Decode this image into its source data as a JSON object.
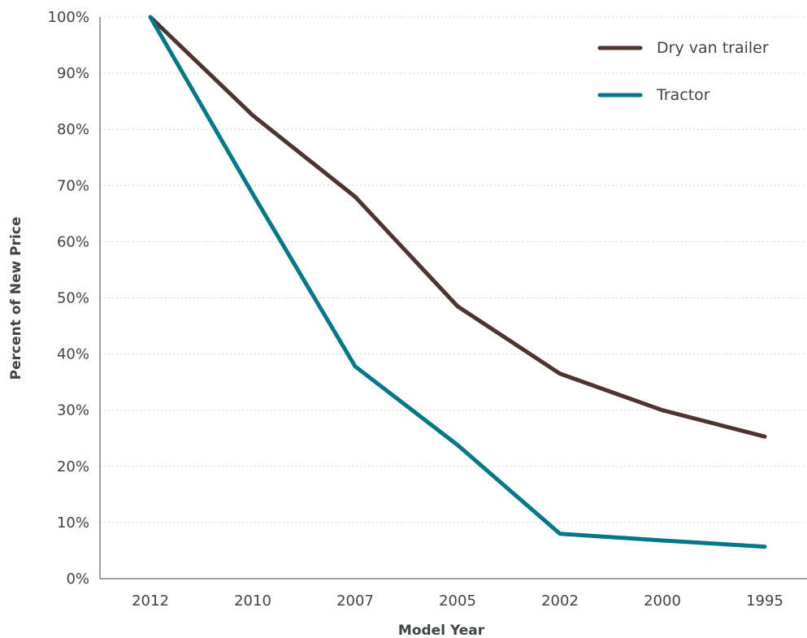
{
  "chart_data": {
    "type": "line",
    "title": "",
    "xlabel": "Model Year",
    "ylabel": "Percent of New Price",
    "categories": [
      "2012",
      "2010",
      "2007",
      "2005",
      "2002",
      "2000",
      "1995"
    ],
    "ylim": [
      0,
      100
    ],
    "yticks": [
      "0%",
      "10%",
      "20%",
      "30%",
      "40%",
      "50%",
      "60%",
      "70%",
      "80%",
      "90%",
      "100%"
    ],
    "grid": true,
    "legend_position": "top-right",
    "series": [
      {
        "name": "Dry van trailer",
        "color": "#4e342e",
        "values": [
          100,
          82.5,
          68,
          48.5,
          36.5,
          30,
          25.3
        ]
      },
      {
        "name": "Tractor",
        "color": "#00788a",
        "values": [
          100,
          68.5,
          37.8,
          23.8,
          8,
          6.8,
          5.7
        ]
      }
    ]
  }
}
